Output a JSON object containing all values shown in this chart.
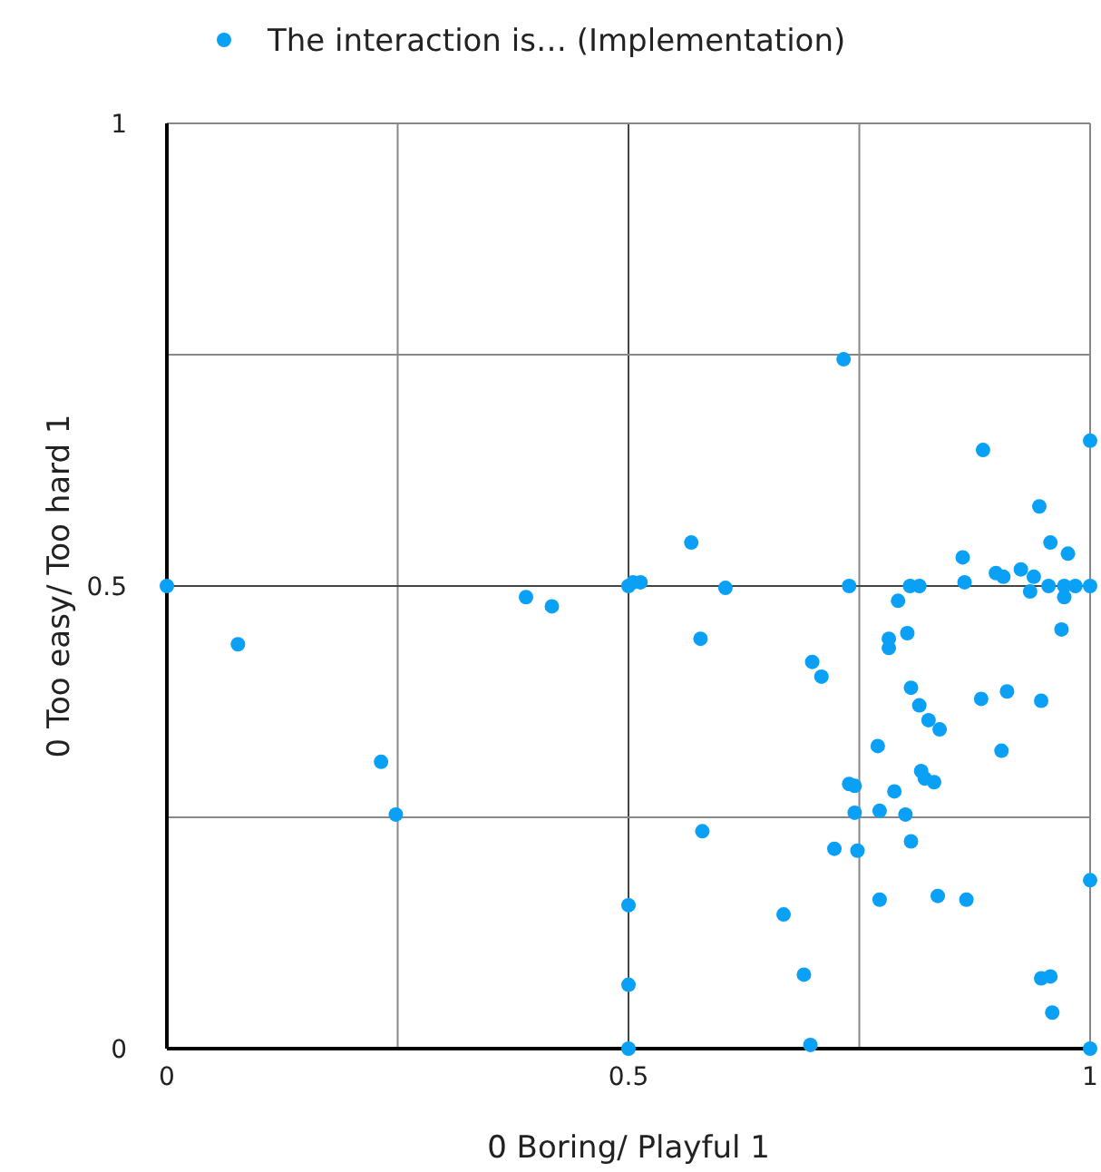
{
  "chart_data": {
    "type": "scatter",
    "xlabel": "0 Boring/ Playful 1",
    "ylabel": "0 Too easy/ Too hard 1",
    "xlim": [
      0,
      1
    ],
    "ylim": [
      0,
      1
    ],
    "xticks": [
      0,
      {
        "value": 0.25,
        "label": null
      },
      0.5,
      {
        "value": 0.75,
        "label": null
      },
      1
    ],
    "yticks": [
      0,
      {
        "value": 0.25,
        "label": null
      },
      0.5,
      {
        "value": 0.75,
        "label": null
      },
      1
    ],
    "grid": true,
    "legend": "top",
    "marker": "circle",
    "series": [
      {
        "name": "The interaction is… (Implementation)",
        "color": "#0aa0f5",
        "x": [
          0,
          0.077,
          0.232,
          0.248,
          0.389,
          0.417,
          0.5,
          0.505,
          0.513,
          0.5,
          0.5,
          0.5,
          0.568,
          0.578,
          0.58,
          0.605,
          0.733,
          0.739,
          0.884,
          1.0,
          0.945,
          0.957,
          0.976,
          0.862,
          0.864,
          0.898,
          0.906,
          0.925,
          0.939,
          0.935,
          0.955,
          0.972,
          0.972,
          0.984,
          1.0,
          0.805,
          0.815,
          0.792,
          0.969,
          0.782,
          0.782,
          0.802,
          0.699,
          0.709,
          0.806,
          0.815,
          0.882,
          0.91,
          0.947,
          0.825,
          0.837,
          0.77,
          0.904,
          0.739,
          0.745,
          0.817,
          0.821,
          0.831,
          0.788,
          0.745,
          0.772,
          0.8,
          0.723,
          0.748,
          0.806,
          0.772,
          0.835,
          0.866,
          1.0,
          0.668,
          0.69,
          0.947,
          0.957,
          0.959,
          0.697,
          1.0
        ],
        "values": [
          0.5,
          0.437,
          0.31,
          0.253,
          0.488,
          0.478,
          0.5,
          0.504,
          0.504,
          0.155,
          0.069,
          0,
          0.547,
          0.443,
          0.235,
          0.498,
          0.745,
          0.5,
          0.647,
          0.657,
          0.586,
          0.547,
          0.535,
          0.531,
          0.504,
          0.514,
          0.51,
          0.518,
          0.51,
          0.494,
          0.5,
          0.5,
          0.488,
          0.5,
          0.5,
          0.5,
          0.5,
          0.484,
          0.453,
          0.443,
          0.433,
          0.449,
          0.418,
          0.402,
          0.39,
          0.371,
          0.378,
          0.386,
          0.376,
          0.355,
          0.345,
          0.327,
          0.322,
          0.286,
          0.284,
          0.3,
          0.292,
          0.288,
          0.278,
          0.255,
          0.257,
          0.253,
          0.216,
          0.214,
          0.224,
          0.161,
          0.165,
          0.161,
          0.182,
          0.145,
          0.08,
          0.076,
          0.078,
          0.039,
          0.004,
          0
        ]
      }
    ]
  }
}
